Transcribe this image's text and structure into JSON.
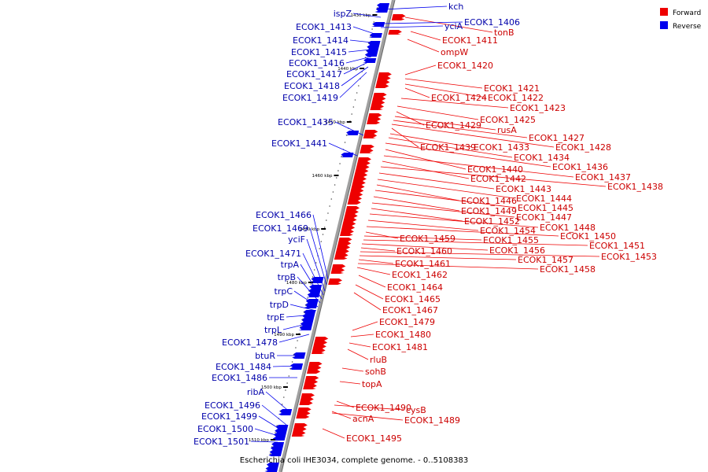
{
  "caption": "Escherichia coli IHE3034, complete genome. - 0..5108383",
  "legend": [
    {
      "label": "Forward",
      "color": "#ee0000"
    },
    {
      "label": "Reverse",
      "color": "#0000ee"
    }
  ],
  "colors": {
    "forward": "#ee0000",
    "reverse": "#0000ee",
    "backbone": "#999999"
  },
  "ticks": [
    "1430 kbp",
    "1440 kbp",
    "1450 kbp",
    "1460 kbp",
    "1470 kbp",
    "1480 kbp",
    "1490 kbp",
    "1500 kbp",
    "1510 kbp"
  ],
  "forward_genes": [
    "tonB",
    "ECOK1_1411",
    "ompW",
    "ECOK1_1420",
    "ECOK1_1421",
    "ECOK1_1422",
    "ECOK1_1424",
    "ECOK1_1423",
    "ECOK1_1425",
    "ECOK1_1429",
    "rusA",
    "ECOK1_1427",
    "ECOK1_1428",
    "ECOK1_1439",
    "ECOK1_1433",
    "ECOK1_1434",
    "ECOK1_1436",
    "ECOK1_1440",
    "ECOK1_1437",
    "ECOK1_1442",
    "ECOK1_1438",
    "ECOK1_1443",
    "ECOK1_1444",
    "ECOK1_1446",
    "ECOK1_1445",
    "ECOK1_1449",
    "ECOK1_1447",
    "ECOK1_1452",
    "ECOK1_1448",
    "ECOK1_1454",
    "ECOK1_1450",
    "ECOK1_1459",
    "ECOK1_1455",
    "ECOK1_1451",
    "ECOK1_1456",
    "ECOK1_1460",
    "ECOK1_1453",
    "ECOK1_1457",
    "ECOK1_1461",
    "ECOK1_1458",
    "ECOK1_1462",
    "ECOK1_1464",
    "ECOK1_1465",
    "ECOK1_1467",
    "ECOK1_1479",
    "ECOK1_1480",
    "ECOK1_1481",
    "rluB",
    "sohB",
    "topA",
    "ECOK1_1490",
    "cysB",
    "acnA",
    "ECOK1_1489",
    "ECOK1_1495"
  ],
  "reverse_genes": [
    "kch",
    "ispZ",
    "ECOK1_1406",
    "yciA",
    "ECOK1_1413",
    "ECOK1_1414",
    "ECOK1_1415",
    "ECOK1_1416",
    "ECOK1_1417",
    "ECOK1_1418",
    "ECOK1_1419",
    "ECOK1_1435",
    "ECOK1_1441",
    "ECOK1_1466",
    "ECOK1_1469",
    "yciF",
    "ECOK1_1471",
    "trpA",
    "trpB",
    "trpC",
    "trpD",
    "trpE",
    "trpL",
    "ECOK1_1478",
    "btuR",
    "ECOK1_1484",
    "ECOK1_1486",
    "ribA",
    "ECOK1_1496",
    "ECOK1_1499",
    "ECOK1_1500",
    "ECOK1_1501"
  ]
}
